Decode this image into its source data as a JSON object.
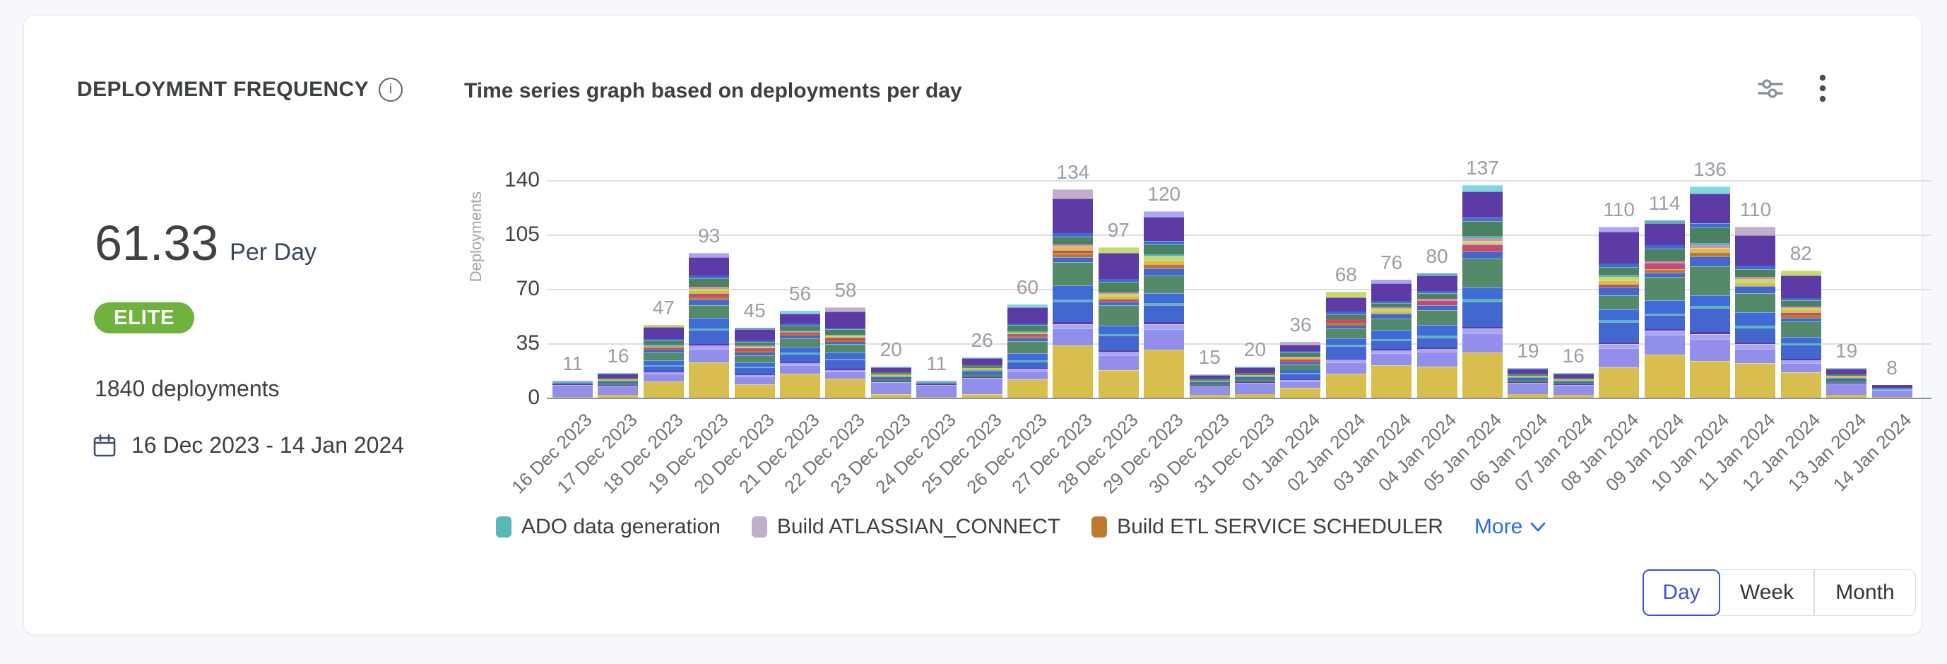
{
  "card": {
    "title": "DEPLOYMENT FREQUENCY",
    "info_icon": "i",
    "subtitle": "Time series graph based on deployments per day",
    "metric_value": "61.33",
    "metric_unit": "Per Day",
    "badge_label": "ELITE",
    "badge_color": "#6fb33d",
    "total_deployments": "1840 deployments",
    "date_range": "16 Dec 2023 - 14 Jan 2024",
    "period_toggle": {
      "options": [
        "Day",
        "Week",
        "Month"
      ],
      "selected": "Day"
    }
  },
  "chart_data": {
    "type": "bar",
    "stacked": true,
    "title": "Time series graph based on deployments per day",
    "xlabel": "",
    "ylabel": "Deployments",
    "ylim": [
      0,
      140
    ],
    "yticks": [
      0,
      35,
      70,
      105,
      140
    ],
    "grid": true,
    "legend_position": "bottom",
    "categories": [
      "16 Dec 2023",
      "17 Dec 2023",
      "18 Dec 2023",
      "19 Dec 2023",
      "20 Dec 2023",
      "21 Dec 2023",
      "22 Dec 2023",
      "23 Dec 2023",
      "24 Dec 2023",
      "25 Dec 2023",
      "26 Dec 2023",
      "27 Dec 2023",
      "28 Dec 2023",
      "29 Dec 2023",
      "30 Dec 2023",
      "31 Dec 2023",
      "01 Jan 2024",
      "02 Jan 2024",
      "03 Jan 2024",
      "04 Jan 2024",
      "05 Jan 2024",
      "06 Jan 2024",
      "07 Jan 2024",
      "08 Jan 2024",
      "09 Jan 2024",
      "10 Jan 2024",
      "11 Jan 2024",
      "12 Jan 2024",
      "13 Jan 2024",
      "14 Jan 2024"
    ],
    "totals": [
      11,
      16,
      47,
      93,
      45,
      56,
      58,
      20,
      11,
      26,
      60,
      134,
      97,
      120,
      15,
      20,
      36,
      68,
      76,
      80,
      137,
      19,
      16,
      110,
      114,
      136,
      110,
      82,
      19,
      8
    ],
    "legend": [
      {
        "label": "ADO data generation",
        "color": "#58b7b9"
      },
      {
        "label": "Build ATLASSIAN_CONNECT",
        "color": "#c2aec9"
      },
      {
        "label": "Build ETL SERVICE SCHEDULER",
        "color": "#bd7a31"
      }
    ],
    "more_label": "More",
    "palette": {
      "yellow": "#d8be4f",
      "peri": "#928eec",
      "periLight": "#aba6f3",
      "blue": "#4466cf",
      "blue2": "#3f6bd6",
      "green": "#54896a",
      "green2": "#4a8160",
      "dpurple": "#5d3ba6",
      "teal": "#58b7b9",
      "cyan": "#7ed8e1",
      "magenta": "#c34a84",
      "red": "#c5504b",
      "orange": "#bd7a31",
      "lime": "#c6da6c",
      "mauve": "#c2aec9",
      "pink": "#d490b4"
    }
  }
}
